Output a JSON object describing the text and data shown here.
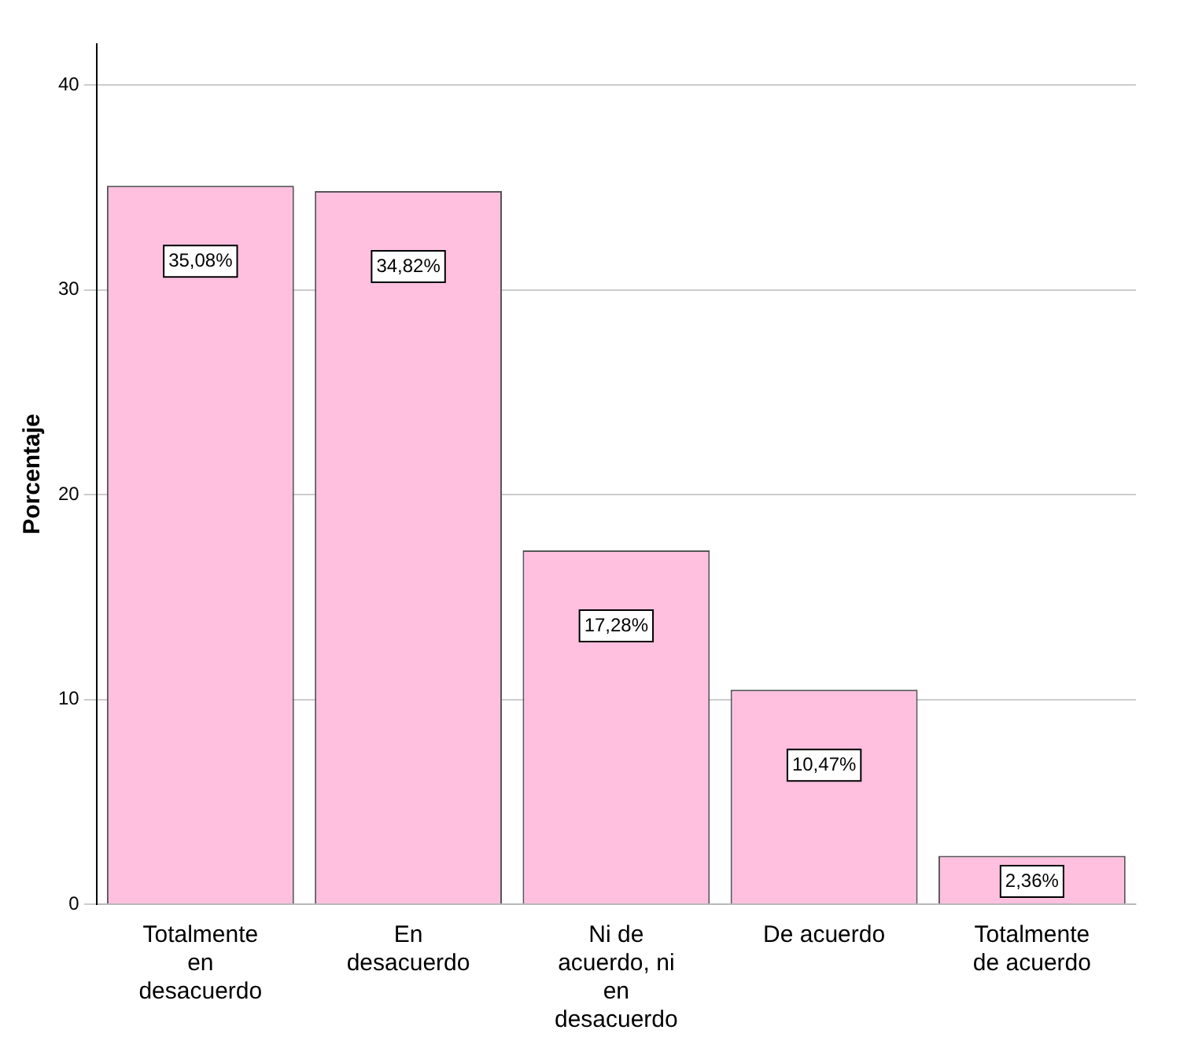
{
  "chart_data": {
    "type": "bar",
    "ylabel": "Porcentaje",
    "categories": [
      "Totalmente en desacuerdo",
      "En desacuerdo",
      "Ni de acuerdo, ni en desacuerdo",
      "De acuerdo",
      "Totalmente de acuerdo"
    ],
    "values": [
      35.08,
      34.82,
      17.28,
      10.47,
      2.36
    ],
    "value_labels": [
      "35,08%",
      "34,82%",
      "17,28%",
      "10,47%",
      "2,36%"
    ],
    "color": "#ffc0e0",
    "ylim": [
      0,
      42
    ],
    "yticks": [
      0,
      10,
      20,
      30,
      40
    ],
    "grid": "y"
  }
}
